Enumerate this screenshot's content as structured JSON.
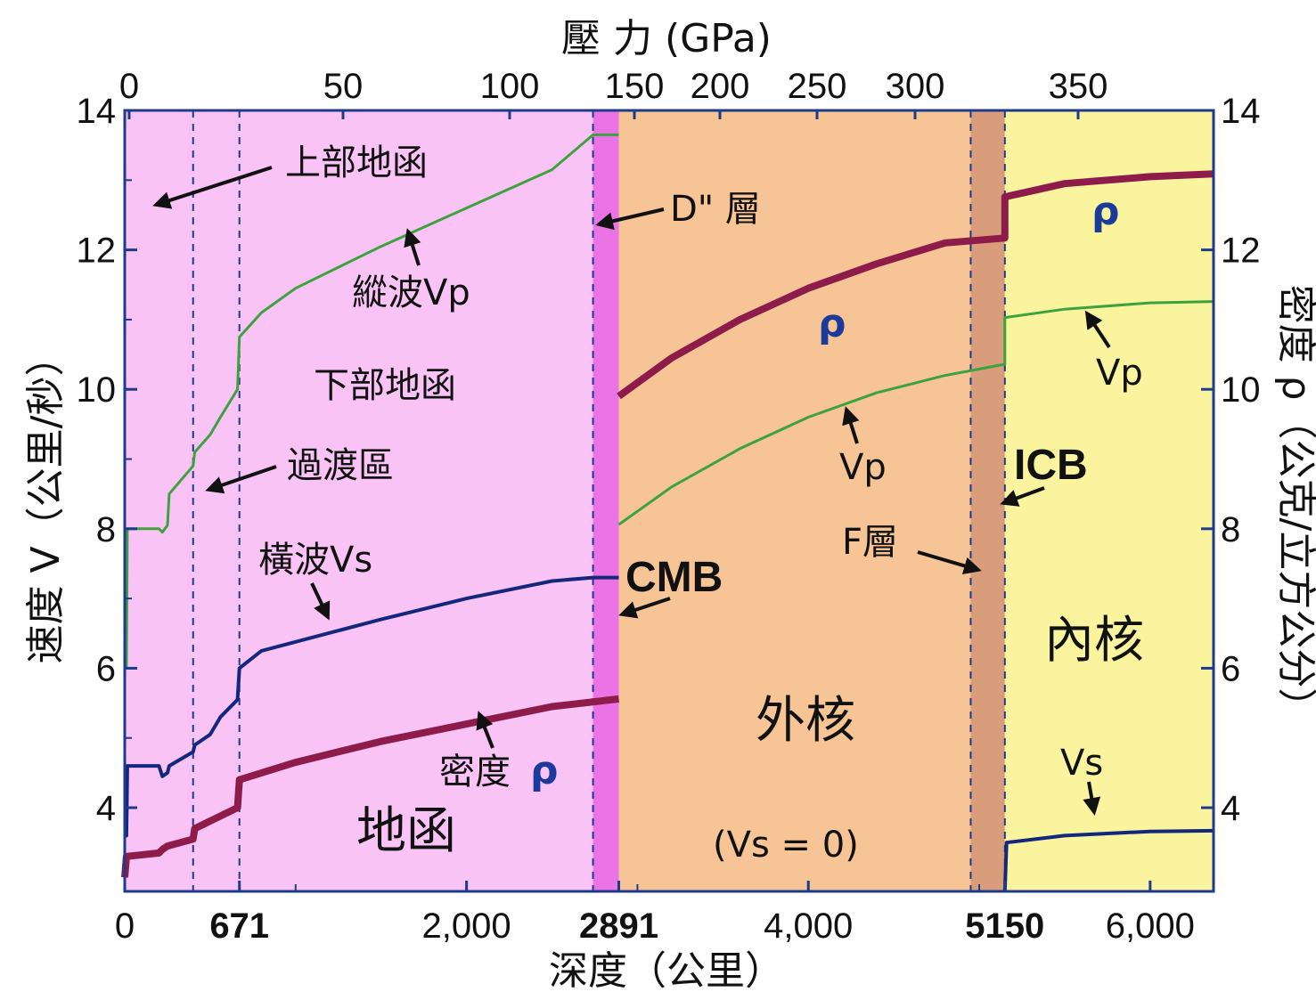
{
  "chart_data": {
    "type": "line",
    "x_bottom": {
      "label": "深度（公里）",
      "ticks": [
        "0",
        "671",
        "2,000",
        "2891",
        "4,000",
        "5150",
        "6,000"
      ],
      "tick_values": [
        0,
        671,
        2000,
        2891,
        4000,
        5150,
        6000
      ],
      "bold_ticks": [
        "671",
        "2891",
        "5150"
      ]
    },
    "x_top": {
      "label": "壓 力 (GPa)",
      "ticks": [
        "0",
        "50",
        "100",
        "150",
        "200",
        "250",
        "300",
        "350"
      ]
    },
    "y_left": {
      "label": "速度 V（公里/秒）",
      "ticks": [
        "4",
        "6",
        "8",
        "10",
        "12",
        "14"
      ]
    },
    "y_right": {
      "label": "密度 ρ（公克/立方公分）",
      "ticks": [
        "4",
        "6",
        "8",
        "10",
        "12",
        "14"
      ]
    },
    "xlim": [
      0,
      6371
    ],
    "ylim": [
      2.8,
      14
    ],
    "regions": [
      {
        "name": "mantle",
        "from": 0,
        "to": 2891,
        "color": "#f9c3f5"
      },
      {
        "name": "D-layer",
        "from": 2740,
        "to": 2891,
        "color": "#ea74e6"
      },
      {
        "name": "outer-core",
        "from": 2891,
        "to": 5150,
        "color": "#f7c496"
      },
      {
        "name": "F-layer",
        "from": 4950,
        "to": 5150,
        "color": "#d99d7c"
      },
      {
        "name": "inner-core",
        "from": 5150,
        "to": 6371,
        "color": "#f9f49d"
      }
    ],
    "dashed_depths": [
      400,
      671,
      2740,
      4950,
      5150
    ],
    "series": [
      {
        "name": "縱波Vp",
        "color": "#3da23d",
        "width": 3,
        "points": [
          [
            0,
            6.0
          ],
          [
            10,
            6.0
          ],
          [
            15,
            8.0
          ],
          [
            200,
            8.0
          ],
          [
            220,
            7.95
          ],
          [
            250,
            8.05
          ],
          [
            260,
            8.5
          ],
          [
            400,
            8.9
          ],
          [
            410,
            9.1
          ],
          [
            500,
            9.35
          ],
          [
            560,
            9.6
          ],
          [
            660,
            10.0
          ],
          [
            671,
            10.75
          ],
          [
            800,
            11.1
          ],
          [
            1000,
            11.45
          ],
          [
            1500,
            12.05
          ],
          [
            2000,
            12.6
          ],
          [
            2500,
            13.15
          ],
          [
            2740,
            13.65
          ],
          [
            2891,
            13.65
          ]
        ]
      },
      {
        "name": "Vp",
        "color": "#3da23d",
        "width": 3,
        "points": [
          [
            2891,
            8.06
          ],
          [
            3200,
            8.6
          ],
          [
            3600,
            9.15
          ],
          [
            4000,
            9.6
          ],
          [
            4400,
            9.95
          ],
          [
            4800,
            10.2
          ],
          [
            5150,
            10.36
          ],
          [
            5150,
            11.03
          ],
          [
            5500,
            11.15
          ],
          [
            6000,
            11.24
          ],
          [
            6371,
            11.26
          ]
        ]
      },
      {
        "name": "橫波Vs",
        "color": "#13287c",
        "width": 4,
        "points": [
          [
            0,
            3.6
          ],
          [
            10,
            3.6
          ],
          [
            15,
            4.6
          ],
          [
            200,
            4.6
          ],
          [
            220,
            4.45
          ],
          [
            250,
            4.5
          ],
          [
            260,
            4.6
          ],
          [
            400,
            4.8
          ],
          [
            410,
            4.9
          ],
          [
            500,
            5.05
          ],
          [
            560,
            5.3
          ],
          [
            660,
            5.55
          ],
          [
            671,
            6.0
          ],
          [
            800,
            6.25
          ],
          [
            1500,
            6.7
          ],
          [
            2000,
            7.0
          ],
          [
            2500,
            7.25
          ],
          [
            2740,
            7.3
          ],
          [
            2891,
            7.3
          ]
        ]
      },
      {
        "name": "Vs",
        "color": "#13287c",
        "width": 4,
        "points": [
          [
            5150,
            2.8
          ],
          [
            5160,
            3.5
          ],
          [
            5500,
            3.6
          ],
          [
            6000,
            3.66
          ],
          [
            6371,
            3.67
          ]
        ]
      },
      {
        "name": "密度ρ",
        "color": "#8e1c4a",
        "width": 8,
        "points": [
          [
            0,
            3.0
          ],
          [
            10,
            3.3
          ],
          [
            200,
            3.35
          ],
          [
            220,
            3.4
          ],
          [
            250,
            3.45
          ],
          [
            400,
            3.55
          ],
          [
            410,
            3.7
          ],
          [
            660,
            4.0
          ],
          [
            671,
            4.4
          ],
          [
            1000,
            4.65
          ],
          [
            1500,
            4.95
          ],
          [
            2000,
            5.2
          ],
          [
            2500,
            5.45
          ],
          [
            2891,
            5.56
          ]
        ]
      },
      {
        "name": "ρ",
        "color": "#8e1c4a",
        "width": 8,
        "points": [
          [
            2891,
            9.9
          ],
          [
            3200,
            10.45
          ],
          [
            3600,
            11.0
          ],
          [
            4000,
            11.45
          ],
          [
            4400,
            11.8
          ],
          [
            4800,
            12.1
          ],
          [
            5150,
            12.17
          ],
          [
            5150,
            12.76
          ],
          [
            5500,
            12.95
          ],
          [
            6000,
            13.05
          ],
          [
            6371,
            13.09
          ]
        ]
      }
    ],
    "annotations": {
      "upper_mantle": "上部地函",
      "transition_zone": "過渡區",
      "lower_mantle": "下部地函",
      "mantle": "地函",
      "d_layer": "D\" 層",
      "vp_mantle": "縱波Vp",
      "vs_mantle": "橫波Vs",
      "rho_mantle_text": "密度",
      "rho_symbol": "ρ",
      "cmb": "CMB",
      "outer_core": "外核",
      "vs_zero": "(Vs = 0)",
      "vp_core": "Vp",
      "f_layer": "F層",
      "icb": "ICB",
      "inner_core": "內核",
      "vp_inner": "Vp",
      "vs_inner": "Vs"
    }
  }
}
